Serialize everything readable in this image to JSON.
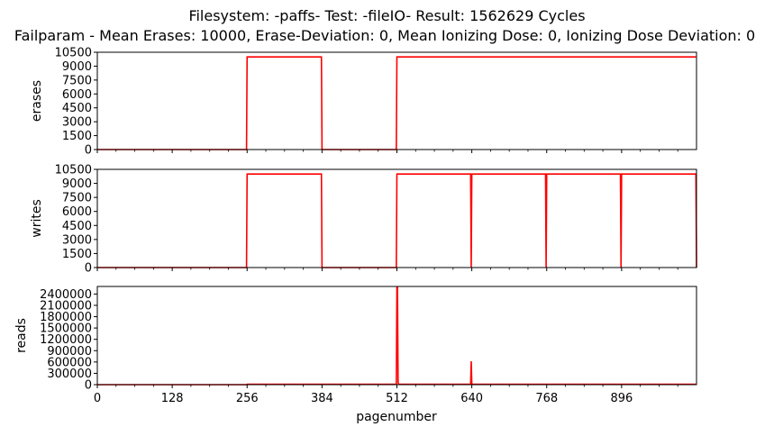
{
  "figure": {
    "title_line1": "Filesystem: -paffs- Test: -fileIO- Result: 1562629 Cycles",
    "title_line2": "Failparam - Mean Erases: 10000, Erase-Deviation: 0, Mean Ionizing Dose: 0, Ionizing Dose Deviation: 0",
    "xlabel": "pagenumber"
  },
  "colors": {
    "series": "#ff0000",
    "axes": "#000000",
    "background": "#ffffff"
  },
  "chart_data": [
    {
      "type": "line",
      "title": "",
      "xlabel": "",
      "ylabel": "erases",
      "xlim": [
        0,
        1024
      ],
      "ylim": [
        0,
        10500
      ],
      "x_ticks": [
        0,
        128,
        256,
        384,
        512,
        640,
        768,
        896
      ],
      "y_ticks": [
        0,
        1500,
        3000,
        4500,
        6000,
        7500,
        9000,
        10500
      ],
      "y_tick_labels": [
        "0",
        "1500",
        "3000",
        "4500",
        "6000",
        "7500",
        "9000",
        "10500"
      ],
      "show_x_tick_labels": false,
      "grid": false,
      "series": [
        {
          "x": [
            0,
            255,
            256,
            383,
            384,
            511,
            512,
            1023
          ],
          "values": [
            0,
            0,
            10000,
            10000,
            0,
            0,
            10000,
            10000
          ]
        }
      ]
    },
    {
      "type": "line",
      "title": "",
      "xlabel": "",
      "ylabel": "writes",
      "xlim": [
        0,
        1024
      ],
      "ylim": [
        0,
        10500
      ],
      "x_ticks": [
        0,
        128,
        256,
        384,
        512,
        640,
        768,
        896
      ],
      "y_ticks": [
        0,
        1500,
        3000,
        4500,
        6000,
        7500,
        9000,
        10500
      ],
      "y_tick_labels": [
        "0",
        "1500",
        "3000",
        "4500",
        "6000",
        "7500",
        "9000",
        "10500"
      ],
      "show_x_tick_labels": false,
      "grid": false,
      "series": [
        {
          "x": [
            0,
            255,
            256,
            383,
            384,
            511,
            512,
            638,
            639,
            640,
            766,
            767,
            768,
            894,
            895,
            896,
            1023,
            1024
          ],
          "values": [
            0,
            0,
            10000,
            10000,
            0,
            0,
            10000,
            10000,
            0,
            10000,
            10000,
            0,
            10000,
            10000,
            0,
            10000,
            10000,
            0
          ]
        }
      ]
    },
    {
      "type": "line",
      "title": "",
      "xlabel": "pagenumber",
      "ylabel": "reads",
      "xlim": [
        0,
        1024
      ],
      "ylim": [
        0,
        2600000
      ],
      "x_ticks": [
        0,
        128,
        256,
        384,
        512,
        640,
        768,
        896
      ],
      "x_tick_labels": [
        "0",
        "128",
        "256",
        "384",
        "512",
        "640",
        "768",
        "896"
      ],
      "y_ticks": [
        0,
        300000,
        600000,
        900000,
        1200000,
        1500000,
        1800000,
        2100000,
        2400000
      ],
      "y_tick_labels": [
        "0",
        "300000",
        "600000",
        "900000",
        "1200000",
        "1500000",
        "1800000",
        "2100000",
        "2400000"
      ],
      "show_x_tick_labels": true,
      "grid": false,
      "series": [
        {
          "x": [
            0,
            255,
            256,
            511,
            512,
            513,
            514,
            515,
            600,
            638,
            639,
            640,
            641,
            700,
            1023
          ],
          "values": [
            0,
            0,
            10000,
            10000,
            2570000,
            2570000,
            60000,
            10000,
            10000,
            10000,
            620000,
            20000,
            10000,
            10000,
            10000
          ]
        }
      ]
    }
  ]
}
